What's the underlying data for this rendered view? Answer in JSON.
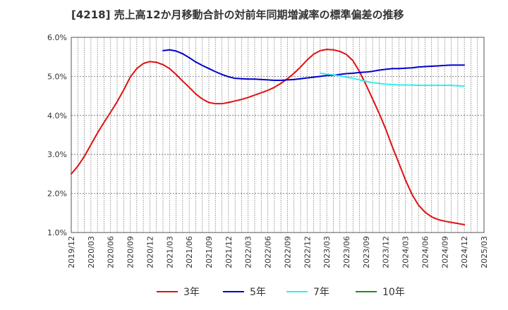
{
  "chart_data": {
    "type": "line",
    "title": "[4218]  売上高12か月移動合計の対前年同期増減率の標準偏差の推移",
    "xlabel": "",
    "ylabel": "",
    "ylim": [
      1.0,
      6.0
    ],
    "y_ticks": [
      "1.0%",
      "2.0%",
      "3.0%",
      "4.0%",
      "5.0%",
      "6.0%"
    ],
    "x_ticks": [
      "2019/12",
      "2020/03",
      "2020/06",
      "2020/09",
      "2020/12",
      "2021/03",
      "2021/06",
      "2021/09",
      "2021/12",
      "2022/03",
      "2022/06",
      "2022/09",
      "2022/12",
      "2023/03",
      "2023/06",
      "2023/09",
      "2023/12",
      "2024/03",
      "2024/06",
      "2024/09",
      "2024/12",
      "2025/03"
    ],
    "grid": true,
    "legend_position": "bottom",
    "series": [
      {
        "name": "3年",
        "color": "#e01010",
        "points": [
          [
            "2019/12",
            2.5
          ],
          [
            "2020/01",
            2.7
          ],
          [
            "2020/02",
            2.95
          ],
          [
            "2020/03",
            3.25
          ],
          [
            "2020/04",
            3.55
          ],
          [
            "2020/05",
            3.82
          ],
          [
            "2020/06",
            4.08
          ],
          [
            "2020/07",
            4.35
          ],
          [
            "2020/08",
            4.65
          ],
          [
            "2020/09",
            4.98
          ],
          [
            "2020/10",
            5.2
          ],
          [
            "2020/11",
            5.33
          ],
          [
            "2020/12",
            5.38
          ],
          [
            "2021/01",
            5.36
          ],
          [
            "2021/02",
            5.3
          ],
          [
            "2021/03",
            5.2
          ],
          [
            "2021/04",
            5.05
          ],
          [
            "2021/05",
            4.88
          ],
          [
            "2021/06",
            4.72
          ],
          [
            "2021/07",
            4.55
          ],
          [
            "2021/08",
            4.42
          ],
          [
            "2021/09",
            4.33
          ],
          [
            "2021/10",
            4.3
          ],
          [
            "2021/11",
            4.3
          ],
          [
            "2021/12",
            4.33
          ],
          [
            "2022/01",
            4.37
          ],
          [
            "2022/02",
            4.41
          ],
          [
            "2022/03",
            4.46
          ],
          [
            "2022/04",
            4.52
          ],
          [
            "2022/05",
            4.58
          ],
          [
            "2022/06",
            4.64
          ],
          [
            "2022/07",
            4.72
          ],
          [
            "2022/08",
            4.82
          ],
          [
            "2022/09",
            4.94
          ],
          [
            "2022/10",
            5.08
          ],
          [
            "2022/11",
            5.24
          ],
          [
            "2022/12",
            5.42
          ],
          [
            "2023/01",
            5.57
          ],
          [
            "2023/02",
            5.66
          ],
          [
            "2023/03",
            5.69
          ],
          [
            "2023/04",
            5.68
          ],
          [
            "2023/05",
            5.64
          ],
          [
            "2023/06",
            5.56
          ],
          [
            "2023/07",
            5.4
          ],
          [
            "2023/08",
            5.12
          ],
          [
            "2023/09",
            4.78
          ],
          [
            "2023/10",
            4.42
          ],
          [
            "2023/11",
            4.05
          ],
          [
            "2023/12",
            3.65
          ],
          [
            "2024/01",
            3.2
          ],
          [
            "2024/02",
            2.78
          ],
          [
            "2024/03",
            2.35
          ],
          [
            "2024/04",
            1.98
          ],
          [
            "2024/05",
            1.7
          ],
          [
            "2024/06",
            1.52
          ],
          [
            "2024/07",
            1.4
          ],
          [
            "2024/08",
            1.33
          ],
          [
            "2024/09",
            1.29
          ],
          [
            "2024/10",
            1.26
          ],
          [
            "2024/11",
            1.23
          ],
          [
            "2024/12",
            1.2
          ]
        ]
      },
      {
        "name": "5年",
        "color": "#0000cc",
        "points": [
          [
            "2021/02",
            5.66
          ],
          [
            "2021/03",
            5.68
          ],
          [
            "2021/04",
            5.65
          ],
          [
            "2021/05",
            5.58
          ],
          [
            "2021/06",
            5.48
          ],
          [
            "2021/07",
            5.37
          ],
          [
            "2021/08",
            5.28
          ],
          [
            "2021/09",
            5.2
          ],
          [
            "2021/10",
            5.12
          ],
          [
            "2021/11",
            5.05
          ],
          [
            "2021/12",
            4.99
          ],
          [
            "2022/01",
            4.95
          ],
          [
            "2022/02",
            4.94
          ],
          [
            "2022/03",
            4.93
          ],
          [
            "2022/04",
            4.93
          ],
          [
            "2022/05",
            4.92
          ],
          [
            "2022/06",
            4.91
          ],
          [
            "2022/07",
            4.9
          ],
          [
            "2022/08",
            4.9
          ],
          [
            "2022/09",
            4.91
          ],
          [
            "2022/10",
            4.92
          ],
          [
            "2022/11",
            4.94
          ],
          [
            "2022/12",
            4.96
          ],
          [
            "2023/01",
            4.98
          ],
          [
            "2023/02",
            5.0
          ],
          [
            "2023/03",
            5.02
          ],
          [
            "2023/04",
            5.03
          ],
          [
            "2023/05",
            5.05
          ],
          [
            "2023/06",
            5.07
          ],
          [
            "2023/07",
            5.08
          ],
          [
            "2023/08",
            5.1
          ],
          [
            "2023/09",
            5.11
          ],
          [
            "2023/10",
            5.13
          ],
          [
            "2023/11",
            5.16
          ],
          [
            "2023/12",
            5.18
          ],
          [
            "2024/01",
            5.2
          ],
          [
            "2024/02",
            5.2
          ],
          [
            "2024/03",
            5.21
          ],
          [
            "2024/04",
            5.22
          ],
          [
            "2024/05",
            5.24
          ],
          [
            "2024/06",
            5.25
          ],
          [
            "2024/07",
            5.26
          ],
          [
            "2024/08",
            5.27
          ],
          [
            "2024/09",
            5.28
          ],
          [
            "2024/10",
            5.29
          ],
          [
            "2024/11",
            5.29
          ],
          [
            "2024/12",
            5.29
          ]
        ]
      },
      {
        "name": "7年",
        "color": "#33eeee",
        "points": [
          [
            "2023/02",
            5.08
          ],
          [
            "2023/03",
            5.06
          ],
          [
            "2023/04",
            5.04
          ],
          [
            "2023/05",
            5.01
          ],
          [
            "2023/06",
            4.98
          ],
          [
            "2023/07",
            4.95
          ],
          [
            "2023/08",
            4.91
          ],
          [
            "2023/09",
            4.87
          ],
          [
            "2023/10",
            4.84
          ],
          [
            "2023/11",
            4.82
          ],
          [
            "2023/12",
            4.8
          ],
          [
            "2024/01",
            4.79
          ],
          [
            "2024/02",
            4.78
          ],
          [
            "2024/03",
            4.78
          ],
          [
            "2024/04",
            4.78
          ],
          [
            "2024/05",
            4.77
          ],
          [
            "2024/06",
            4.77
          ],
          [
            "2024/07",
            4.77
          ],
          [
            "2024/08",
            4.77
          ],
          [
            "2024/09",
            4.77
          ],
          [
            "2024/10",
            4.77
          ],
          [
            "2024/11",
            4.76
          ],
          [
            "2024/12",
            4.75
          ]
        ]
      },
      {
        "name": "10年",
        "color": "#228b22",
        "points": []
      }
    ]
  }
}
